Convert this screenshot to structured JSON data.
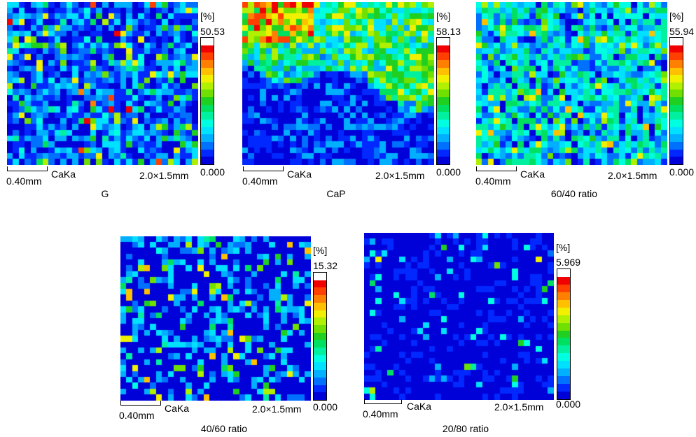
{
  "chart_data": [
    {
      "type": "heatmap",
      "title": "G",
      "element_label": "CaKa",
      "unit_label": "[%]",
      "max_value": 50.53,
      "max_label": "50.53",
      "min_label": "0.000",
      "scale_bar_label": "0.40mm",
      "field_size_label": "2.0×1.5mm",
      "caption": "G",
      "grid": [
        32,
        28
      ],
      "pattern": "scattered"
    },
    {
      "type": "heatmap",
      "title": "CaP",
      "element_label": "CaKa",
      "unit_label": "[%]",
      "max_value": 58.13,
      "max_label": "58.13",
      "min_label": "0.000",
      "scale_bar_label": "0.40mm",
      "field_size_label": "2.0×1.5mm",
      "caption": "CaP",
      "grid": [
        32,
        28
      ],
      "pattern": "upper-band"
    },
    {
      "type": "heatmap",
      "title": "60/40 ratio",
      "element_label": "CaKa",
      "unit_label": "[%]",
      "max_value": 55.94,
      "max_label": "55.94",
      "min_label": "0.000",
      "scale_bar_label": "0.40mm",
      "field_size_label": "2.0×1.5mm",
      "caption": "60/40 ratio",
      "grid": [
        32,
        28
      ],
      "pattern": "dense"
    },
    {
      "type": "heatmap",
      "title": "40/60 ratio",
      "element_label": "CaKa",
      "unit_label": "[%]",
      "max_value": 15.32,
      "max_label": "15.32",
      "min_label": "0.000",
      "scale_bar_label": "0.40mm",
      "field_size_label": "2.0×1.5mm",
      "caption": "40/60 ratio",
      "grid": [
        32,
        28
      ],
      "pattern": "sparse"
    },
    {
      "type": "heatmap",
      "title": "20/80 ratio",
      "element_label": "CaKa",
      "unit_label": "[%]",
      "max_value": 5.969,
      "max_label": "5.969",
      "min_label": "0.000",
      "scale_bar_label": "0.40mm",
      "field_size_label": "2.0×1.5mm",
      "caption": "20/80 ratio",
      "grid": [
        32,
        28
      ],
      "pattern": "very-sparse"
    }
  ],
  "colorscale": [
    "#0000d8",
    "#0028ff",
    "#0070ff",
    "#00b0ff",
    "#00e0ff",
    "#00ffe0",
    "#00f0a0",
    "#00e060",
    "#20d020",
    "#70e000",
    "#b0f000",
    "#f0f000",
    "#ffc000",
    "#ff8000",
    "#ff4000",
    "#f00000",
    "#ffffff"
  ]
}
